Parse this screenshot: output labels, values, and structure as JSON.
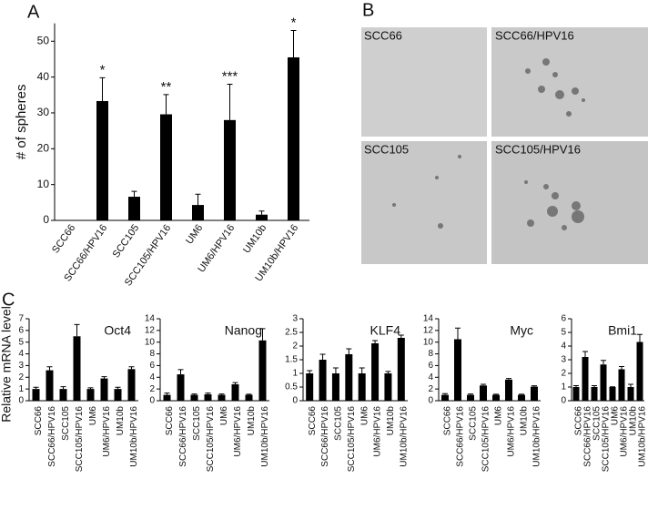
{
  "chart_data": [
    {
      "type": "bar",
      "panel_label": "A",
      "ylabel": "# of spheres",
      "categories": [
        "SCC66",
        "SCC66/HPV16",
        "SCC105",
        "SCC105/HPV16",
        "UM6",
        "UM6/HPV16",
        "UM10b",
        "UM10b/HPV16"
      ],
      "values": [
        0,
        33.3,
        6.6,
        29.6,
        4.3,
        28,
        1.6,
        45.5
      ],
      "errors": [
        0,
        6.5,
        1.5,
        5.5,
        3,
        10,
        1,
        7.5
      ],
      "significance": [
        null,
        "*",
        null,
        "**",
        null,
        "***",
        null,
        "*"
      ],
      "color": "#000000",
      "ylim": [
        0,
        55
      ],
      "yticks": [
        0,
        10,
        20,
        30,
        40,
        50
      ]
    },
    {
      "type": "bar",
      "title": "Oct4",
      "categories": [
        "SCC66",
        "SCC66/HPV16",
        "SCC105",
        "SCC105/HPV16",
        "UM6",
        "UM6/HPV16",
        "UM10b",
        "UM10b/HPV16"
      ],
      "values": [
        1,
        2.6,
        1,
        5.5,
        1,
        1.9,
        1,
        2.7
      ],
      "errors": [
        0.15,
        0.3,
        0.2,
        1,
        0.1,
        0.15,
        0.15,
        0.2
      ],
      "color": "#000000",
      "ylim": [
        0,
        7
      ],
      "yticks": [
        0,
        1,
        2,
        3,
        4,
        5,
        6,
        7
      ]
    },
    {
      "type": "bar",
      "title": "Nanog",
      "categories": [
        "SCC66",
        "SCC66/HPV16",
        "SCC105",
        "SCC105/HPV16",
        "UM6",
        "UM6/HPV16",
        "UM10b",
        "UM10b/HPV16"
      ],
      "values": [
        1,
        4.5,
        1,
        1.1,
        1,
        2.8,
        1,
        10.3
      ],
      "errors": [
        0.3,
        0.8,
        0.15,
        0.2,
        0.15,
        0.3,
        0.1,
        2
      ],
      "color": "#000000",
      "ylim": [
        0,
        14
      ],
      "yticks": [
        0,
        2,
        4,
        6,
        8,
        10,
        12,
        14
      ]
    },
    {
      "type": "bar",
      "title": "KLF4",
      "categories": [
        "SCC66",
        "SCC66/HPV16",
        "SCC105",
        "SCC105/HPV16",
        "UM6",
        "UM6/HPV16",
        "UM10b",
        "UM10b/HPV16"
      ],
      "values": [
        1,
        1.5,
        1,
        1.7,
        1,
        2.1,
        1,
        2.3
      ],
      "errors": [
        0.1,
        0.2,
        0.2,
        0.2,
        0.2,
        0.1,
        0.07,
        0.1
      ],
      "color": "#000000",
      "ylim": [
        0,
        3
      ],
      "yticks": [
        0,
        0.5,
        1,
        1.5,
        2,
        2.5,
        3
      ]
    },
    {
      "type": "bar",
      "title": "Myc",
      "categories": [
        "SCC66",
        "SCC66/HPV16",
        "SCC105",
        "SCC105/HPV16",
        "UM6",
        "UM6/HPV16",
        "UM10b",
        "UM10b/HPV16"
      ],
      "values": [
        1,
        10.5,
        1,
        2.6,
        1,
        3.6,
        1,
        2.4
      ],
      "errors": [
        0.2,
        1.9,
        0.15,
        0.2,
        0.1,
        0.2,
        0.1,
        0.15
      ],
      "color": "#000000",
      "ylim": [
        0,
        14
      ],
      "yticks": [
        0,
        2,
        4,
        6,
        8,
        10,
        12,
        14
      ]
    },
    {
      "type": "bar",
      "title": "Bmi1",
      "categories": [
        "SCC66",
        "SCC66/HPV16",
        "SCC105",
        "SCC105/HPV16",
        "UM6",
        "UM6/HPV16",
        "UM10b",
        "UM10b/HPV16"
      ],
      "values": [
        1,
        3.2,
        1,
        2.65,
        1,
        2.3,
        1,
        4.3
      ],
      "errors": [
        0.1,
        0.4,
        0.1,
        0.3,
        0.02,
        0.2,
        0.2,
        0.55
      ],
      "color": "#000000",
      "ylim": [
        0,
        6
      ],
      "yticks": [
        0,
        1,
        2,
        3,
        4,
        5,
        6
      ]
    }
  ],
  "panel_b": {
    "label": "B",
    "images": [
      "SCC66",
      "SCC66/HPV16",
      "SCC105",
      "SCC105/HPV16"
    ]
  },
  "panel_c": {
    "label": "C",
    "ylabel": "Relative mRNA level"
  }
}
